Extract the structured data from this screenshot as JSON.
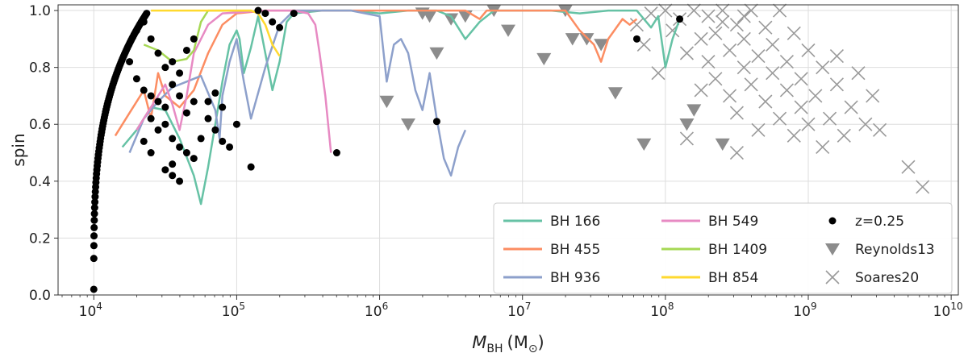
{
  "chart_data": {
    "type": "line+scatter",
    "xscale": "log",
    "xlim_exp": [
      3.75,
      10.05
    ],
    "ylim": [
      0,
      1.02
    ],
    "xlabel": "M",
    "xlabel_sub": "BH",
    "xlabel_unit": "(M",
    "xlabel_unit_sub": "⊙",
    "xlabel_close": ")",
    "ylabel": "spin",
    "xticks": [
      {
        "base": "10",
        "exp": "4",
        "value": 4
      },
      {
        "base": "10",
        "exp": "5",
        "value": 5
      },
      {
        "base": "10",
        "exp": "6",
        "value": 6
      },
      {
        "base": "10",
        "exp": "7",
        "value": 7
      },
      {
        "base": "10",
        "exp": "8",
        "value": 8
      },
      {
        "base": "10",
        "exp": "9",
        "value": 9
      },
      {
        "base": "10",
        "exp": "10",
        "value": 10
      }
    ],
    "yticks": [
      "0.0",
      "0.2",
      "0.4",
      "0.6",
      "0.8",
      "1.0"
    ],
    "series": [
      {
        "name": "BH 166",
        "label": "BH 166",
        "color": "#66c2a5",
        "points": [
          [
            4.2,
            0.52
          ],
          [
            4.3,
            0.58
          ],
          [
            4.4,
            0.66
          ],
          [
            4.5,
            0.65
          ],
          [
            4.6,
            0.55
          ],
          [
            4.7,
            0.42
          ],
          [
            4.75,
            0.32
          ],
          [
            4.8,
            0.45
          ],
          [
            4.85,
            0.6
          ],
          [
            4.9,
            0.75
          ],
          [
            4.95,
            0.88
          ],
          [
            5.0,
            0.93
          ],
          [
            5.02,
            0.9
          ],
          [
            5.05,
            0.78
          ],
          [
            5.1,
            0.87
          ],
          [
            5.15,
            0.98
          ],
          [
            5.2,
            0.85
          ],
          [
            5.25,
            0.72
          ],
          [
            5.3,
            0.82
          ],
          [
            5.35,
            0.96
          ],
          [
            5.4,
            0.99
          ],
          [
            5.6,
            1.0
          ],
          [
            5.8,
            1.0
          ],
          [
            6.0,
            0.99
          ],
          [
            6.2,
            1.0
          ],
          [
            6.4,
            1.0
          ],
          [
            6.5,
            0.98
          ],
          [
            6.6,
            0.9
          ],
          [
            6.7,
            0.96
          ],
          [
            6.8,
            1.0
          ],
          [
            7.0,
            1.0
          ],
          [
            7.2,
            1.0
          ],
          [
            7.4,
            0.99
          ],
          [
            7.6,
            1.0
          ],
          [
            7.8,
            1.0
          ],
          [
            7.9,
            0.94
          ],
          [
            7.95,
            0.98
          ],
          [
            8.0,
            0.8
          ],
          [
            8.05,
            0.9
          ],
          [
            8.1,
            0.97
          ]
        ]
      },
      {
        "name": "BH 455",
        "label": "BH 455",
        "color": "#fc8d62",
        "points": [
          [
            4.15,
            0.56
          ],
          [
            4.25,
            0.64
          ],
          [
            4.35,
            0.72
          ],
          [
            4.4,
            0.62
          ],
          [
            4.45,
            0.78
          ],
          [
            4.5,
            0.7
          ],
          [
            4.6,
            0.66
          ],
          [
            4.7,
            0.72
          ],
          [
            4.8,
            0.85
          ],
          [
            4.9,
            0.95
          ],
          [
            5.0,
            0.99
          ],
          [
            5.2,
            1.0
          ],
          [
            5.4,
            1.0
          ],
          [
            5.6,
            1.0
          ],
          [
            5.8,
            1.0
          ],
          [
            6.0,
            1.0
          ],
          [
            6.2,
            1.0
          ],
          [
            6.4,
            1.0
          ],
          [
            6.6,
            1.0
          ],
          [
            6.7,
            0.97
          ],
          [
            6.75,
            1.0
          ],
          [
            6.9,
            1.0
          ],
          [
            7.1,
            1.0
          ],
          [
            7.3,
            1.0
          ],
          [
            7.4,
            0.93
          ],
          [
            7.5,
            0.88
          ],
          [
            7.55,
            0.82
          ],
          [
            7.6,
            0.9
          ],
          [
            7.7,
            0.97
          ],
          [
            7.75,
            0.95
          ],
          [
            7.8,
            0.97
          ]
        ]
      },
      {
        "name": "BH 936",
        "label": "BH 936",
        "color": "#8da0cb",
        "points": [
          [
            4.25,
            0.5
          ],
          [
            4.35,
            0.62
          ],
          [
            4.45,
            0.68
          ],
          [
            4.55,
            0.73
          ],
          [
            4.65,
            0.75
          ],
          [
            4.75,
            0.77
          ],
          [
            4.85,
            0.65
          ],
          [
            4.88,
            0.55
          ],
          [
            4.9,
            0.7
          ],
          [
            4.95,
            0.82
          ],
          [
            5.0,
            0.9
          ],
          [
            5.05,
            0.75
          ],
          [
            5.1,
            0.62
          ],
          [
            5.2,
            0.8
          ],
          [
            5.3,
            0.95
          ],
          [
            5.4,
            1.0
          ],
          [
            5.6,
            1.0
          ],
          [
            5.8,
            1.0
          ],
          [
            6.0,
            0.98
          ],
          [
            6.05,
            0.75
          ],
          [
            6.1,
            0.88
          ],
          [
            6.15,
            0.9
          ],
          [
            6.2,
            0.85
          ],
          [
            6.25,
            0.72
          ],
          [
            6.3,
            0.65
          ],
          [
            6.35,
            0.78
          ],
          [
            6.4,
            0.62
          ],
          [
            6.45,
            0.48
          ],
          [
            6.5,
            0.42
          ],
          [
            6.55,
            0.52
          ],
          [
            6.6,
            0.58
          ]
        ]
      },
      {
        "name": "BH 549",
        "label": "BH 549",
        "color": "#e78ac3",
        "points": [
          [
            4.3,
            0.58
          ],
          [
            4.4,
            0.66
          ],
          [
            4.5,
            0.74
          ],
          [
            4.55,
            0.67
          ],
          [
            4.6,
            0.58
          ],
          [
            4.65,
            0.7
          ],
          [
            4.7,
            0.85
          ],
          [
            4.8,
            0.95
          ],
          [
            4.9,
            0.99
          ],
          [
            5.2,
            1.0
          ],
          [
            5.4,
            1.0
          ],
          [
            5.5,
            0.99
          ],
          [
            5.55,
            0.95
          ],
          [
            5.58,
            0.85
          ],
          [
            5.62,
            0.7
          ],
          [
            5.66,
            0.5
          ]
        ]
      },
      {
        "name": "BH 1409",
        "label": "BH 1409",
        "color": "#a6d854",
        "points": [
          [
            4.35,
            0.88
          ],
          [
            4.45,
            0.86
          ],
          [
            4.55,
            0.82
          ],
          [
            4.65,
            0.83
          ],
          [
            4.7,
            0.86
          ],
          [
            4.75,
            0.96
          ],
          [
            4.8,
            1.0
          ],
          [
            5.0,
            1.0
          ],
          [
            5.1,
            1.0
          ]
        ]
      },
      {
        "name": "BH 854",
        "label": "BH 854",
        "color": "#ffd92f",
        "points": [
          [
            4.4,
            1.0
          ],
          [
            4.6,
            1.0
          ],
          [
            4.8,
            1.0
          ],
          [
            5.0,
            1.0
          ],
          [
            5.1,
            1.0
          ],
          [
            5.15,
            0.99
          ],
          [
            5.2,
            0.95
          ],
          [
            5.25,
            0.88
          ],
          [
            5.3,
            0.84
          ]
        ]
      }
    ],
    "scatter": [
      {
        "name": "z=0.25",
        "label": "z=0.25",
        "marker": "circle",
        "color": "#000000",
        "points": [
          [
            4.3,
            0.93
          ],
          [
            4.35,
            0.96
          ],
          [
            4.4,
            0.9
          ],
          [
            4.45,
            0.85
          ],
          [
            4.5,
            0.8
          ],
          [
            4.55,
            0.82
          ],
          [
            4.6,
            0.78
          ],
          [
            4.65,
            0.86
          ],
          [
            4.7,
            0.9
          ],
          [
            4.4,
            0.7
          ],
          [
            4.45,
            0.68
          ],
          [
            4.5,
            0.6
          ],
          [
            4.55,
            0.55
          ],
          [
            4.6,
            0.52
          ],
          [
            4.65,
            0.5
          ],
          [
            4.7,
            0.48
          ],
          [
            4.75,
            0.55
          ],
          [
            4.8,
            0.62
          ],
          [
            4.85,
            0.58
          ],
          [
            4.9,
            0.54
          ],
          [
            4.95,
            0.52
          ],
          [
            4.5,
            0.44
          ],
          [
            4.55,
            0.42
          ],
          [
            4.6,
            0.4
          ],
          [
            4.3,
            0.76
          ],
          [
            4.35,
            0.72
          ],
          [
            4.4,
            0.62
          ],
          [
            4.45,
            0.58
          ],
          [
            4.5,
            0.66
          ],
          [
            4.55,
            0.74
          ],
          [
            4.6,
            0.7
          ],
          [
            4.65,
            0.64
          ],
          [
            4.7,
            0.68
          ],
          [
            4.25,
            0.82
          ],
          [
            4.35,
            0.54
          ],
          [
            4.4,
            0.5
          ],
          [
            4.55,
            0.46
          ],
          [
            4.8,
            0.68
          ],
          [
            4.85,
            0.71
          ],
          [
            4.9,
            0.66
          ],
          [
            5.0,
            0.6
          ],
          [
            5.1,
            0.45
          ],
          [
            5.15,
            1.0
          ],
          [
            5.2,
            0.99
          ],
          [
            5.25,
            0.96
          ],
          [
            5.3,
            0.94
          ],
          [
            5.4,
            0.99
          ],
          [
            5.7,
            0.5
          ],
          [
            6.4,
            0.61
          ],
          [
            7.8,
            0.9
          ],
          [
            8.1,
            0.97
          ]
        ]
      },
      {
        "name": "Reynolds13",
        "label": "Reynolds13",
        "marker": "triangle",
        "color": "#8c8c8c",
        "points": [
          [
            6.05,
            0.68
          ],
          [
            6.2,
            0.6
          ],
          [
            6.3,
            0.99
          ],
          [
            6.35,
            0.98
          ],
          [
            6.4,
            0.85
          ],
          [
            6.5,
            0.97
          ],
          [
            6.6,
            0.98
          ],
          [
            6.8,
            1.0
          ],
          [
            6.9,
            0.93
          ],
          [
            7.15,
            0.83
          ],
          [
            7.3,
            1.0
          ],
          [
            7.35,
            0.9
          ],
          [
            7.45,
            0.9
          ],
          [
            7.55,
            0.88
          ],
          [
            7.65,
            0.71
          ],
          [
            7.85,
            0.53
          ],
          [
            8.15,
            0.6
          ],
          [
            8.2,
            0.65
          ],
          [
            8.4,
            0.53
          ]
        ]
      },
      {
        "name": "Soares20",
        "label": "Soares20",
        "marker": "cross",
        "color": "#9a9a9a",
        "points": [
          [
            7.8,
            0.95
          ],
          [
            7.85,
            0.88
          ],
          [
            7.9,
            0.99
          ],
          [
            7.95,
            0.78
          ],
          [
            8.0,
            1.0
          ],
          [
            8.05,
            0.93
          ],
          [
            8.1,
            0.97
          ],
          [
            8.15,
            0.85
          ],
          [
            8.2,
            1.0
          ],
          [
            8.25,
            0.9
          ],
          [
            8.3,
            0.98
          ],
          [
            8.3,
            0.82
          ],
          [
            8.35,
            0.92
          ],
          [
            8.35,
            0.76
          ],
          [
            8.4,
            1.0
          ],
          [
            8.45,
            0.86
          ],
          [
            8.45,
            0.7
          ],
          [
            8.5,
            0.95
          ],
          [
            8.5,
            0.64
          ],
          [
            8.55,
            0.8
          ],
          [
            8.55,
            0.9
          ],
          [
            8.6,
            1.0
          ],
          [
            8.6,
            0.74
          ],
          [
            8.65,
            0.84
          ],
          [
            8.65,
            0.58
          ],
          [
            8.7,
            0.94
          ],
          [
            8.7,
            0.68
          ],
          [
            8.75,
            0.78
          ],
          [
            8.75,
            0.88
          ],
          [
            8.8,
            1.0
          ],
          [
            8.8,
            0.62
          ],
          [
            8.85,
            0.72
          ],
          [
            8.85,
            0.82
          ],
          [
            8.9,
            0.92
          ],
          [
            8.9,
            0.56
          ],
          [
            8.95,
            0.66
          ],
          [
            8.95,
            0.76
          ],
          [
            9.0,
            0.86
          ],
          [
            9.0,
            0.6
          ],
          [
            9.05,
            0.7
          ],
          [
            9.1,
            0.8
          ],
          [
            9.1,
            0.52
          ],
          [
            9.15,
            0.62
          ],
          [
            9.2,
            0.74
          ],
          [
            9.2,
            0.84
          ],
          [
            9.25,
            0.56
          ],
          [
            9.3,
            0.66
          ],
          [
            9.35,
            0.78
          ],
          [
            9.4,
            0.6
          ],
          [
            9.45,
            0.7
          ],
          [
            9.5,
            0.58
          ],
          [
            9.7,
            0.45
          ],
          [
            9.8,
            0.38
          ],
          [
            8.4,
            0.96
          ],
          [
            8.55,
            0.98
          ],
          [
            8.25,
            0.72
          ],
          [
            8.15,
            0.55
          ],
          [
            8.5,
            0.5
          ]
        ]
      }
    ]
  }
}
